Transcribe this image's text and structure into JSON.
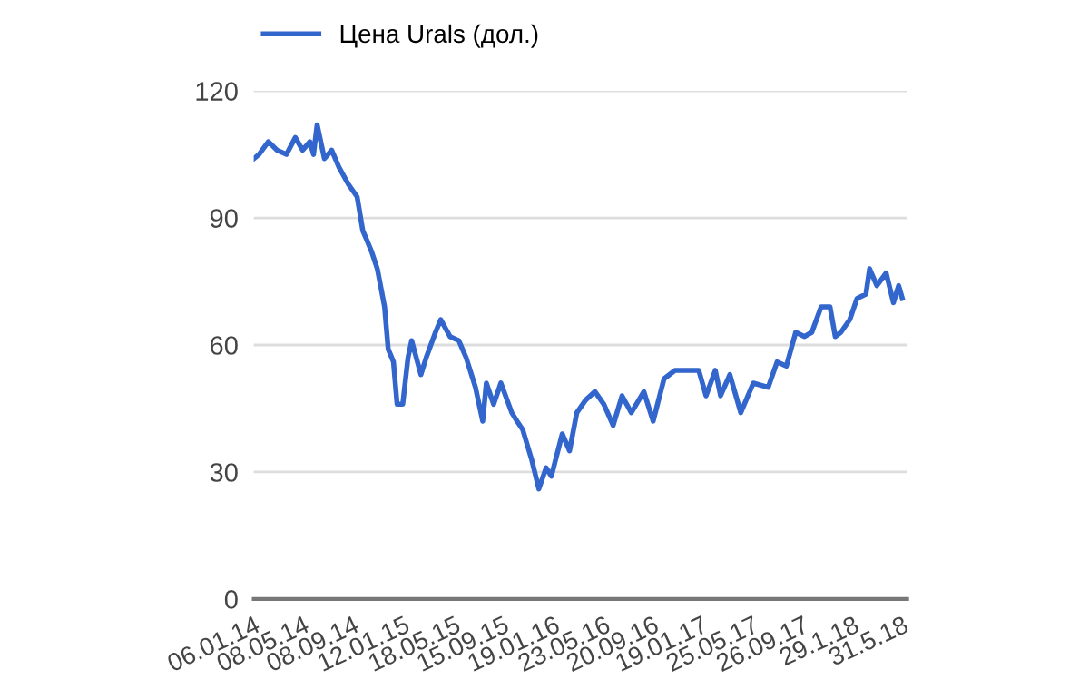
{
  "chart_data": {
    "type": "line",
    "x": [
      "2014-01-06",
      "2014-01-19",
      "2014-02-11",
      "2014-03-05",
      "2014-03-28",
      "2014-04-19",
      "2014-05-07",
      "2014-05-25",
      "2014-06-03",
      "2014-06-12",
      "2014-06-30",
      "2014-07-18",
      "2014-08-05",
      "2014-08-28",
      "2014-09-19",
      "2014-10-03",
      "2014-10-12",
      "2014-10-25",
      "2014-11-08",
      "2014-11-26",
      "2014-12-05",
      "2014-12-18",
      "2014-12-27",
      "2015-01-10",
      "2015-01-23",
      "2015-02-01",
      "2015-02-24",
      "2015-03-09",
      "2015-04-01",
      "2015-04-14",
      "2015-05-07",
      "2015-05-29",
      "2015-06-16",
      "2015-07-09",
      "2015-07-27",
      "2015-08-05",
      "2015-08-23",
      "2015-09-10",
      "2015-10-07",
      "2015-10-20",
      "2015-11-03",
      "2015-11-25",
      "2015-12-13",
      "2015-12-31",
      "2016-01-13",
      "2016-02-09",
      "2016-02-27",
      "2016-03-16",
      "2016-04-07",
      "2016-04-30",
      "2016-05-22",
      "2016-06-14",
      "2016-07-06",
      "2016-07-29",
      "2016-08-29",
      "2016-09-21",
      "2016-10-18",
      "2016-11-14",
      "2016-12-06",
      "2017-01-12",
      "2017-01-30",
      "2017-02-22",
      "2017-03-07",
      "2017-03-30",
      "2017-04-26",
      "2017-05-27",
      "2017-07-03",
      "2017-07-25",
      "2017-08-17",
      "2017-09-09",
      "2017-10-01",
      "2017-10-19",
      "2017-11-11",
      "2017-12-03",
      "2017-12-16",
      "2017-12-30",
      "2018-01-21",
      "2018-02-08",
      "2018-03-02",
      "2018-03-11",
      "2018-03-29",
      "2018-04-21",
      "2018-05-09",
      "2018-05-22",
      "2018-05-31"
    ],
    "series": [
      {
        "name": "Цена Urals (дол.)",
        "color": "#3366cc",
        "values": [
          104,
          105,
          108,
          106,
          105,
          109,
          106,
          108,
          105,
          112,
          104,
          106,
          102,
          98,
          95,
          87,
          85,
          82,
          78,
          69,
          59,
          56,
          46,
          46,
          57,
          61,
          53,
          57,
          63,
          66,
          62,
          61,
          57,
          50,
          42,
          51,
          46,
          51,
          44,
          42,
          40,
          33,
          26,
          31,
          29,
          39,
          35,
          44,
          47,
          49,
          46,
          41,
          48,
          44,
          49,
          42,
          52,
          54,
          54,
          54,
          48,
          54,
          48,
          53,
          44,
          51,
          50,
          56,
          55,
          63,
          62,
          63,
          69,
          69,
          62,
          63,
          66,
          71,
          72,
          78,
          74,
          77,
          70,
          74,
          71
        ]
      }
    ],
    "xlim": [
      "2014-01-06",
      "2018-06-12"
    ],
    "xticks": [
      {
        "value": "2014-01-06",
        "label": "06.01.14"
      },
      {
        "value": "2014-05-08",
        "label": "08.05.14"
      },
      {
        "value": "2014-09-08",
        "label": "08.09.14"
      },
      {
        "value": "2015-01-12",
        "label": "12.01.15"
      },
      {
        "value": "2015-05-18",
        "label": "18.05.15"
      },
      {
        "value": "2015-09-15",
        "label": "15.09.15"
      },
      {
        "value": "2016-01-19",
        "label": "19.01.16"
      },
      {
        "value": "2016-05-23",
        "label": "23.05.16"
      },
      {
        "value": "2016-09-20",
        "label": "20.09.16"
      },
      {
        "value": "2017-01-19",
        "label": "19.01.17"
      },
      {
        "value": "2017-05-25",
        "label": "25.05.17"
      },
      {
        "value": "2017-09-26",
        "label": "26.09.17"
      },
      {
        "value": "2018-01-29",
        "label": "29.1.18"
      },
      {
        "value": "2018-05-31",
        "label": "31.5.18"
      }
    ],
    "ylim": [
      0,
      120
    ],
    "yticks": [
      0,
      30,
      60,
      90,
      120
    ],
    "grid": "y",
    "legend": "top left",
    "marker": "none",
    "line_style": "solid"
  }
}
